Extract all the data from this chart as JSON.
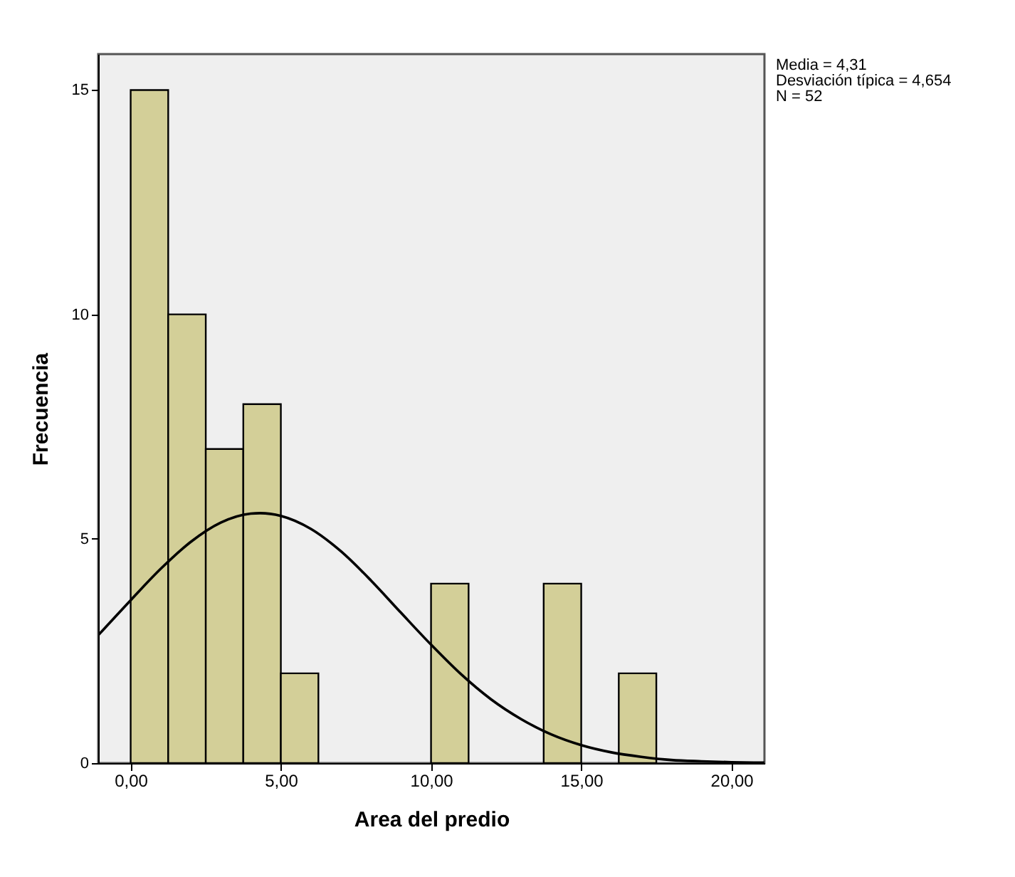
{
  "chart_data": {
    "type": "histogram",
    "xlabel": "Area del predio",
    "ylabel": "Frecuencia",
    "bins": [
      0,
      1.25,
      2.5,
      3.75,
      5,
      6.25,
      7.5,
      8.75,
      10,
      11.25,
      12.5,
      13.75,
      15,
      16.25,
      17.5
    ],
    "values": [
      15,
      10,
      7,
      8,
      2,
      0,
      0,
      0,
      4,
      0,
      0,
      4,
      0,
      2
    ],
    "color": "#d3cf98",
    "series": [
      {
        "type": "line",
        "color": "#000000",
        "x": [
          -1.08,
          0,
          1,
          2,
          3,
          4,
          4.31,
          5,
          6,
          7,
          8,
          9,
          10,
          11,
          12,
          13,
          14,
          15,
          16,
          17,
          18,
          19,
          20,
          21.1
        ],
        "values": [
          2.85,
          3.63,
          4.33,
          4.93,
          5.36,
          5.56,
          5.57,
          5.51,
          5.22,
          4.72,
          4.07,
          3.35,
          2.64,
          1.98,
          1.42,
          0.98,
          0.64,
          0.4,
          0.24,
          0.14,
          0.07,
          0.04,
          0.02,
          0.01
        ]
      }
    ],
    "xlim": [
      -1.08,
      21.1
    ],
    "ylim": [
      0,
      15.8
    ],
    "xticks": [
      {
        "value": 0,
        "label": "0,00"
      },
      {
        "value": 5,
        "label": "5,00"
      },
      {
        "value": 10,
        "label": "10,00"
      },
      {
        "value": 15,
        "label": "15,00"
      },
      {
        "value": 20,
        "label": "20,00"
      }
    ],
    "yticks": [
      0,
      5,
      10,
      15
    ],
    "grid": false,
    "annotations": [
      "Media = 4,31",
      "Desviación típica = 4,654",
      "N = 52"
    ]
  }
}
